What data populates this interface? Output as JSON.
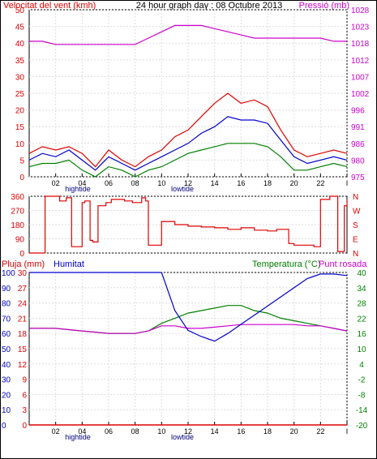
{
  "header": {
    "wind_speed_title": "Velocitat del vent (kmh)",
    "graph_title": "24 hour graph day : 08 Octubre 2013",
    "pressure_title": "Pressió (mb)"
  },
  "colors": {
    "wind_speed": "#dd0000",
    "wind_gust": "#dd0000",
    "wind_avg": "#0000cc",
    "wind_low": "#008000",
    "pressure": "#cc00cc",
    "direction": "#dd0000",
    "humidity": "#0000cc",
    "temperature": "#008000",
    "dew_point": "#cc00cc",
    "rain": "#dd0000",
    "axis": "#000000",
    "grid": "#dddddd"
  },
  "tide_labels": {
    "hightide": "hightide",
    "lowtide": "lowtide"
  },
  "chart_data": [
    {
      "type": "line",
      "id": "wind_pressure",
      "title": "24 hour graph day : 08 Octubre 2013",
      "ylabel": "Velocitat del vent (kmh)",
      "ylabel_right": "Pressió (mb)",
      "ylim": [
        0,
        50
      ],
      "ylim_right": [
        975,
        1028
      ],
      "y_ticks": [
        0,
        5,
        10,
        15,
        20,
        25,
        30,
        35,
        40,
        45,
        50
      ],
      "y_ticks_right": [
        975,
        980,
        986,
        991,
        996,
        1002,
        1007,
        1012,
        1018,
        1023,
        1028
      ],
      "x_ticks": [
        "02",
        "04",
        "06",
        "08",
        "10",
        "12",
        "14",
        "16",
        "18",
        "20",
        "22",
        "I"
      ],
      "hours": [
        0,
        1,
        2,
        3,
        4,
        5,
        6,
        7,
        8,
        9,
        10,
        11,
        12,
        13,
        14,
        15,
        16,
        17,
        18,
        19,
        20,
        21,
        22,
        23,
        24
      ],
      "series": [
        {
          "name": "gust",
          "values": [
            7,
            9,
            8,
            9,
            7,
            3,
            8,
            5,
            3,
            6,
            8,
            12,
            14,
            18,
            22,
            25,
            22,
            23,
            21,
            14,
            8,
            6,
            7,
            8,
            7
          ]
        },
        {
          "name": "average",
          "values": [
            5,
            7,
            6,
            8,
            5,
            2,
            6,
            4,
            2,
            4,
            6,
            8,
            10,
            13,
            15,
            18,
            17,
            17,
            16,
            11,
            6,
            4,
            5,
            6,
            5
          ]
        },
        {
          "name": "low",
          "values": [
            3,
            4,
            4,
            5,
            2,
            0,
            3,
            2,
            0,
            2,
            3,
            5,
            7,
            8,
            9,
            10,
            10,
            10,
            9,
            6,
            2,
            2,
            3,
            4,
            3
          ]
        },
        {
          "name": "pressure",
          "values": [
            1018,
            1018,
            1017,
            1017,
            1017,
            1017,
            1017,
            1017,
            1017,
            1019,
            1021,
            1023,
            1023,
            1023,
            1022,
            1021,
            1020,
            1019,
            1019,
            1019,
            1019,
            1019,
            1019,
            1018,
            1018
          ]
        }
      ]
    },
    {
      "type": "line",
      "id": "wind_direction",
      "ylim": [
        0,
        360
      ],
      "y_ticks": [
        0,
        90,
        180,
        270,
        360
      ],
      "y_ticks_right": [
        "N",
        "E",
        "S",
        "W",
        "N"
      ],
      "hours": [
        0,
        0.8,
        1.2,
        2.3,
        2.8,
        3.2,
        3.7,
        4.0,
        4.2,
        4.6,
        4.8,
        5.2,
        5.8,
        6.2,
        7.2,
        7.8,
        8.5,
        8.8,
        9.0,
        9.6,
        10.0,
        11,
        12,
        13,
        14,
        15,
        16,
        17,
        18,
        18.7,
        19.0,
        19.6,
        20.0,
        21.5,
        22.0,
        22.7,
        23.3,
        23.8,
        24.0
      ],
      "series": [
        {
          "name": "direction",
          "values": [
            0,
            0,
            360,
            330,
            350,
            40,
            40,
            320,
            330,
            80,
            70,
            300,
            320,
            340,
            330,
            320,
            350,
            330,
            50,
            50,
            200,
            180,
            170,
            165,
            160,
            150,
            160,
            145,
            140,
            150,
            150,
            60,
            50,
            40,
            340,
            360,
            10,
            300,
            340
          ]
        }
      ]
    },
    {
      "type": "line",
      "id": "temperature_humidity",
      "labels": {
        "rain": "Pluja (mm)",
        "humidity": "Humitat",
        "temperature": "Temperatura (°C)",
        "dew_point": "Punt rosada"
      },
      "ylim_humidity": [
        0,
        100
      ],
      "ylim_temperature": [
        -20,
        40
      ],
      "ylim_rain": [
        0,
        30
      ],
      "y_ticks_humidity": [
        0,
        10,
        20,
        30,
        40,
        50,
        60,
        70,
        80,
        90,
        100
      ],
      "y_ticks_rain": [
        0,
        3,
        6,
        9,
        12,
        15,
        18,
        21,
        24,
        27,
        30
      ],
      "y_ticks_temperature": [
        -20,
        -14,
        -8,
        -2,
        4,
        10,
        16,
        22,
        28,
        34,
        40
      ],
      "hours": [
        0,
        1,
        2,
        3,
        4,
        5,
        6,
        7,
        8,
        9,
        10,
        11,
        12,
        13,
        14,
        15,
        16,
        17,
        18,
        19,
        20,
        21,
        22,
        23,
        24
      ],
      "series": [
        {
          "name": "humidity",
          "values": [
            100,
            100,
            100,
            100,
            100,
            100,
            100,
            100,
            100,
            100,
            100,
            75,
            62,
            58,
            55,
            60,
            66,
            72,
            78,
            84,
            90,
            96,
            99,
            99,
            98
          ]
        },
        {
          "name": "temperature",
          "values": [
            18,
            18,
            18,
            17.5,
            17,
            16.5,
            16,
            16,
            16,
            17,
            20,
            22,
            24,
            25,
            26,
            27,
            27,
            25,
            24,
            22,
            21,
            20,
            19,
            18,
            17
          ]
        },
        {
          "name": "dew_point",
          "values": [
            18,
            18,
            18,
            17.5,
            17,
            16.5,
            16,
            16,
            16,
            17,
            19,
            19,
            18,
            18,
            18.5,
            19,
            19.5,
            19.5,
            19.5,
            19.5,
            19.5,
            19,
            19,
            18,
            17
          ]
        },
        {
          "name": "rain",
          "values": [
            0,
            0,
            0,
            0,
            0,
            0,
            0,
            0,
            0,
            0,
            0,
            0,
            0,
            0,
            0,
            0,
            0,
            0,
            0,
            0,
            0,
            0,
            0,
            0,
            0
          ]
        }
      ]
    }
  ]
}
